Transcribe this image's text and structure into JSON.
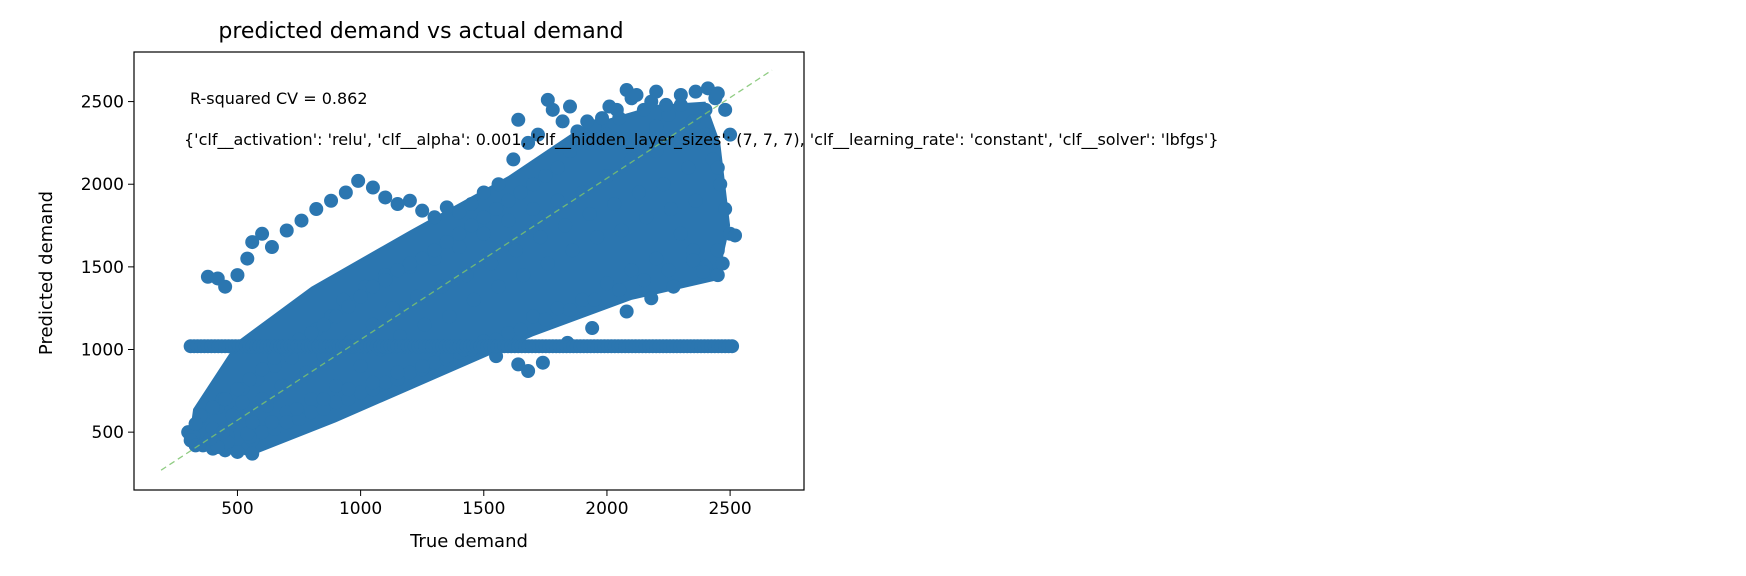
{
  "chart_data": {
    "type": "scatter",
    "title": "predicted demand vs actual demand",
    "xlabel": "True demand",
    "ylabel": "Predicted demand",
    "xlim": [
      80,
      2800
    ],
    "ylim": [
      150,
      2800
    ],
    "xticks": [
      500,
      1000,
      1500,
      2000,
      2500
    ],
    "yticks": [
      500,
      1000,
      1500,
      2000,
      2500
    ],
    "grid": false,
    "annotations": [
      "R-squared CV = 0.862",
      "{'clf__activation': 'relu', 'clf__alpha': 0.001, 'clf__hidden_layer_sizes': (7, 7, 7), 'clf__learning_rate': 'constant', 'clf__solver': 'lbfgs'}"
    ],
    "reference_line": {
      "style": "dashed",
      "x": [
        190,
        2670
      ],
      "y": [
        270,
        2690
      ]
    },
    "series": [
      {
        "marker_color": "#2b76b0",
        "points": [
          [
            300,
            500
          ],
          [
            320,
            480
          ],
          [
            340,
            560
          ],
          [
            360,
            600
          ],
          [
            380,
            430
          ],
          [
            400,
            520
          ],
          [
            420,
            650
          ],
          [
            440,
            700
          ],
          [
            460,
            480
          ],
          [
            480,
            560
          ],
          [
            500,
            620
          ],
          [
            520,
            760
          ],
          [
            540,
            400
          ],
          [
            560,
            450
          ],
          [
            580,
            820
          ],
          [
            600,
            700
          ],
          [
            620,
            660
          ],
          [
            650,
            900
          ],
          [
            680,
            780
          ],
          [
            700,
            620
          ],
          [
            720,
            950
          ],
          [
            750,
            1040
          ],
          [
            780,
            860
          ],
          [
            800,
            700
          ],
          [
            820,
            1120
          ],
          [
            850,
            960
          ],
          [
            880,
            1200
          ],
          [
            900,
            780
          ],
          [
            930,
            1300
          ],
          [
            960,
            1050
          ],
          [
            1000,
            900
          ],
          [
            1020,
            1380
          ],
          [
            1050,
            1150
          ],
          [
            1080,
            1000
          ],
          [
            1100,
            1450
          ],
          [
            1130,
            1250
          ],
          [
            1160,
            1080
          ],
          [
            1200,
            1500
          ],
          [
            1230,
            1320
          ],
          [
            1260,
            1150
          ],
          [
            1300,
            1550
          ],
          [
            1330,
            1380
          ],
          [
            1360,
            1200
          ],
          [
            1400,
            1620
          ],
          [
            1430,
            1450
          ],
          [
            1460,
            1300
          ],
          [
            1500,
            1700
          ],
          [
            1530,
            1520
          ],
          [
            1560,
            1380
          ],
          [
            1600,
            1780
          ],
          [
            1630,
            1600
          ],
          [
            1660,
            1450
          ],
          [
            1700,
            1850
          ],
          [
            1730,
            1680
          ],
          [
            1760,
            1520
          ],
          [
            1800,
            1900
          ],
          [
            1830,
            1750
          ],
          [
            1860,
            1600
          ],
          [
            1900,
            1950
          ],
          [
            1930,
            1820
          ],
          [
            1960,
            1680
          ],
          [
            2000,
            2050
          ],
          [
            2030,
            1880
          ],
          [
            2060,
            1720
          ],
          [
            2100,
            2150
          ],
          [
            2130,
            1950
          ],
          [
            2160,
            1800
          ],
          [
            2200,
            2200
          ],
          [
            2230,
            2000
          ],
          [
            2260,
            1850
          ],
          [
            2300,
            2250
          ],
          [
            2330,
            2100
          ],
          [
            2360,
            1900
          ],
          [
            2400,
            2300
          ],
          [
            2430,
            2150
          ],
          [
            2460,
            2000
          ],
          [
            2300,
            1700
          ],
          [
            2350,
            1600
          ],
          [
            2400,
            1500
          ],
          [
            2450,
            1450
          ],
          [
            2200,
            1550
          ],
          [
            2100,
            1480
          ],
          [
            2000,
            1400
          ],
          [
            1900,
            1300
          ],
          [
            1800,
            1250
          ],
          [
            1700,
            1200
          ],
          [
            1600,
            1100
          ],
          [
            1500,
            1050
          ],
          [
            1400,
            980
          ],
          [
            1300,
            920
          ],
          [
            1200,
            860
          ],
          [
            1100,
            800
          ],
          [
            1000,
            740
          ],
          [
            900,
            680
          ],
          [
            800,
            620
          ],
          [
            700,
            560
          ],
          [
            600,
            500
          ],
          [
            550,
            470
          ],
          [
            650,
            520
          ],
          [
            750,
            580
          ],
          [
            850,
            640
          ],
          [
            950,
            700
          ],
          [
            1050,
            760
          ],
          [
            1150,
            820
          ],
          [
            1250,
            880
          ],
          [
            1350,
            940
          ],
          [
            1450,
            1000
          ],
          [
            1550,
            1060
          ],
          [
            1650,
            1120
          ],
          [
            1750,
            1180
          ],
          [
            1850,
            1240
          ],
          [
            1950,
            1300
          ],
          [
            2050,
            1360
          ],
          [
            2150,
            1420
          ],
          [
            2250,
            1480
          ],
          [
            2350,
            1540
          ],
          [
            2450,
            1600
          ],
          [
            2500,
            1700
          ],
          [
            2480,
            1850
          ],
          [
            2450,
            2100
          ],
          [
            2400,
            2450
          ],
          [
            2350,
            2380
          ],
          [
            2300,
            2480
          ],
          [
            2250,
            2420
          ],
          [
            2200,
            2350
          ],
          [
            2150,
            2450
          ],
          [
            2100,
            2520
          ],
          [
            2050,
            2400
          ],
          [
            2000,
            2300
          ],
          [
            1950,
            2350
          ],
          [
            1900,
            2250
          ],
          [
            1850,
            2200
          ],
          [
            1800,
            2100
          ],
          [
            1750,
            2050
          ],
          [
            1700,
            2000
          ],
          [
            1650,
            1950
          ],
          [
            1600,
            1900
          ],
          [
            1550,
            1850
          ],
          [
            1500,
            1800
          ],
          [
            1450,
            1750
          ],
          [
            1400,
            1700
          ],
          [
            1350,
            1650
          ],
          [
            1300,
            1600
          ],
          [
            1250,
            1550
          ],
          [
            1200,
            1520
          ],
          [
            1150,
            1480
          ],
          [
            1100,
            1420
          ],
          [
            1050,
            1380
          ],
          [
            1000,
            1320
          ],
          [
            950,
            1260
          ],
          [
            900,
            1200
          ],
          [
            850,
            1150
          ],
          [
            800,
            1100
          ],
          [
            750,
            1060
          ],
          [
            700,
            1000
          ],
          [
            650,
            950
          ],
          [
            600,
            880
          ],
          [
            550,
            820
          ],
          [
            500,
            760
          ],
          [
            450,
            700
          ],
          [
            400,
            650
          ],
          [
            350,
            600
          ],
          [
            330,
            550
          ],
          [
            310,
            450
          ],
          [
            330,
            420
          ],
          [
            360,
            420
          ],
          [
            400,
            400
          ],
          [
            450,
            390
          ],
          [
            500,
            380
          ],
          [
            560,
            370
          ],
          [
            380,
            1440
          ],
          [
            420,
            1430
          ],
          [
            450,
            1380
          ],
          [
            500,
            1450
          ],
          [
            540,
            1550
          ],
          [
            560,
            1650
          ],
          [
            600,
            1700
          ],
          [
            640,
            1620
          ],
          [
            700,
            1720
          ],
          [
            760,
            1780
          ],
          [
            820,
            1850
          ],
          [
            880,
            1900
          ],
          [
            940,
            1950
          ],
          [
            990,
            2020
          ],
          [
            1050,
            1980
          ],
          [
            1100,
            1920
          ],
          [
            1150,
            1880
          ],
          [
            1200,
            1900
          ],
          [
            1250,
            1840
          ],
          [
            1300,
            1800
          ],
          [
            1350,
            1860
          ],
          [
            1400,
            1830
          ],
          [
            1450,
            1880
          ],
          [
            1500,
            1950
          ],
          [
            1560,
            2000
          ],
          [
            1620,
            2150
          ],
          [
            1680,
            2250
          ],
          [
            1720,
            2300
          ],
          [
            1780,
            2450
          ],
          [
            1820,
            2380
          ],
          [
            1880,
            2320
          ],
          [
            1920,
            2380
          ],
          [
            1980,
            2400
          ],
          [
            2040,
            2450
          ],
          [
            2080,
            2570
          ],
          [
            2120,
            2540
          ],
          [
            2180,
            2500
          ],
          [
            2240,
            2480
          ],
          [
            2300,
            2540
          ],
          [
            2360,
            2560
          ],
          [
            2410,
            2580
          ],
          [
            2440,
            2520
          ],
          [
            2480,
            2450
          ],
          [
            2500,
            2300
          ],
          [
            2450,
            2550
          ],
          [
            1640,
            2390
          ],
          [
            1760,
            2510
          ],
          [
            1850,
            2470
          ],
          [
            2010,
            2470
          ],
          [
            2200,
            2560
          ],
          [
            1680,
            870
          ],
          [
            1740,
            920
          ],
          [
            1840,
            1040
          ],
          [
            1940,
            1130
          ],
          [
            2080,
            1230
          ],
          [
            2180,
            1310
          ],
          [
            2270,
            1380
          ],
          [
            2390,
            1470
          ],
          [
            2470,
            1520
          ],
          [
            2520,
            1690
          ],
          [
            1500,
            1010
          ],
          [
            1550,
            960
          ],
          [
            1640,
            910
          ],
          [
            1420,
            1000
          ],
          [
            1350,
            960
          ],
          [
            1250,
            900
          ],
          [
            1150,
            860
          ],
          [
            1050,
            800
          ],
          [
            950,
            760
          ],
          [
            850,
            700
          ],
          [
            740,
            640
          ],
          [
            640,
            560
          ],
          [
            540,
            490
          ],
          [
            460,
            440
          ],
          [
            420,
            410
          ],
          [
            390,
            460
          ],
          [
            440,
            500
          ],
          [
            480,
            600
          ],
          [
            520,
            680
          ],
          [
            560,
            560
          ]
        ]
      },
      {
        "marker_color": "#2b76b0",
        "x_from": 310,
        "x_to": 2520,
        "y": 1020
      }
    ]
  }
}
